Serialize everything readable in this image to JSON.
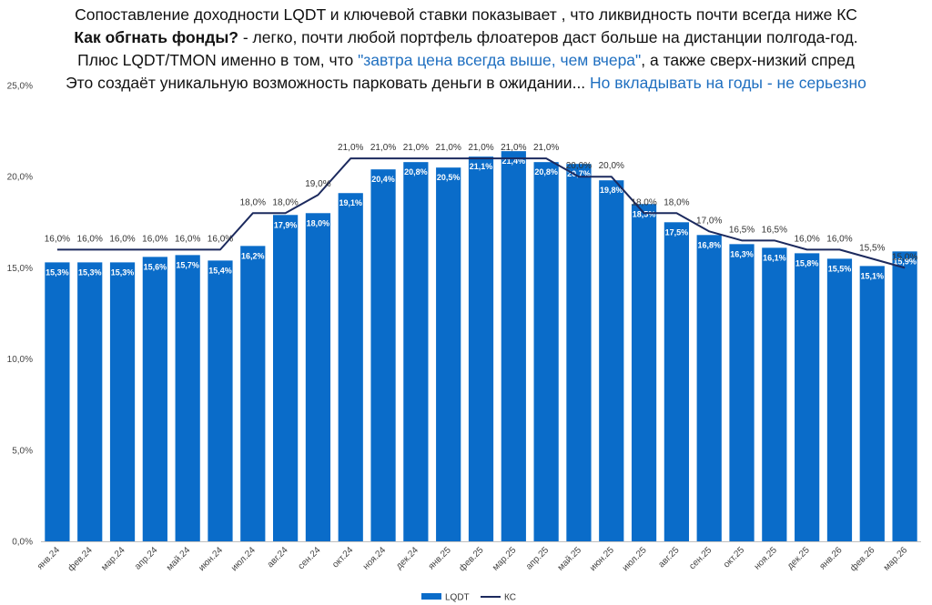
{
  "title": {
    "line1": "Сопоставление доходности LQDT и ключевой ставки показывает , что ликвидность почти всегда ниже КС",
    "line2_bold": "Как обгнать фонды?",
    "line2_rest": " - легко, почти любой портфель флоатеров даст больше на дистанции полгода-год.",
    "line3_start": "Плюс LQDT/TMON именно в том, что ",
    "line3_quote": "\"завтра цена всегда выше, чем вчера\"",
    "line3_end": ", а также сверх-низкий спред",
    "line4_start": "Это создаёт уникальную возможность парковать деньги в ожидании...  ",
    "line4_blue": "Но вкладывать на годы - не серьезно"
  },
  "chart_data": {
    "type": "bar",
    "categories": [
      "янв.24",
      "фев.24",
      "мар.24",
      "апр.24",
      "май.24",
      "июн.24",
      "июл.24",
      "авг.24",
      "сен.24",
      "окт.24",
      "ноя.24",
      "дек.24",
      "янв.25",
      "фев.25",
      "мар.25",
      "апр.25",
      "май.25",
      "июн.25",
      "июл.25",
      "авг.25",
      "сен.25",
      "окт.25",
      "ноя.25",
      "дек.25",
      "янв.26",
      "фев.26",
      "мар.26"
    ],
    "series": [
      {
        "name": "LQDT",
        "type": "bar",
        "values": [
          15.3,
          15.3,
          15.3,
          15.6,
          15.7,
          15.4,
          16.2,
          17.9,
          18.0,
          19.1,
          20.4,
          20.8,
          20.5,
          21.1,
          21.4,
          20.8,
          20.7,
          19.8,
          18.5,
          17.5,
          16.8,
          16.3,
          16.1,
          15.8,
          15.5,
          15.1,
          15.9
        ],
        "labels": [
          "15,3%",
          "15,3%",
          "15,3%",
          "15,6%",
          "15,7%",
          "15,4%",
          "16,2%",
          "17,9%",
          "18,0%",
          "19,1%",
          "20,4%",
          "20,8%",
          "20,5%",
          "21,1%",
          "21,4%",
          "20,8%",
          "20,7%",
          "19,8%",
          "18,5%",
          "17,5%",
          "16,8%",
          "16,3%",
          "16,1%",
          "15,8%",
          "15,5%",
          "15,1%",
          "15,9%"
        ],
        "color": "#0a6cc9"
      },
      {
        "name": "КС",
        "type": "line",
        "values": [
          16.0,
          16.0,
          16.0,
          16.0,
          16.0,
          16.0,
          18.0,
          18.0,
          19.0,
          21.0,
          21.0,
          21.0,
          21.0,
          21.0,
          21.0,
          21.0,
          20.0,
          20.0,
          18.0,
          18.0,
          17.0,
          16.5,
          16.5,
          16.0,
          16.0,
          15.5,
          15.0
        ],
        "labels": [
          "16,0%",
          "16,0%",
          "16,0%",
          "16,0%",
          "16,0%",
          "16,0%",
          "18,0%",
          "18,0%",
          "19,0%",
          "21,0%",
          "21,0%",
          "21,0%",
          "21,0%",
          "21,0%",
          "21,0%",
          "21,0%",
          "20,0%",
          "20,0%",
          "18,0%",
          "18,0%",
          "17,0%",
          "16,5%",
          "16,5%",
          "16,0%",
          "16,0%",
          "15,5%",
          "15,0%"
        ],
        "color": "#1c2a5e"
      }
    ],
    "ylim": [
      0,
      25
    ],
    "yticks": [
      0,
      5,
      10,
      15,
      20,
      25
    ],
    "ytick_labels": [
      "0,0%",
      "5,0%",
      "10,0%",
      "15,0%",
      "20,0%",
      "25,0%"
    ],
    "legend_position": "bottom-center",
    "grid": false
  }
}
